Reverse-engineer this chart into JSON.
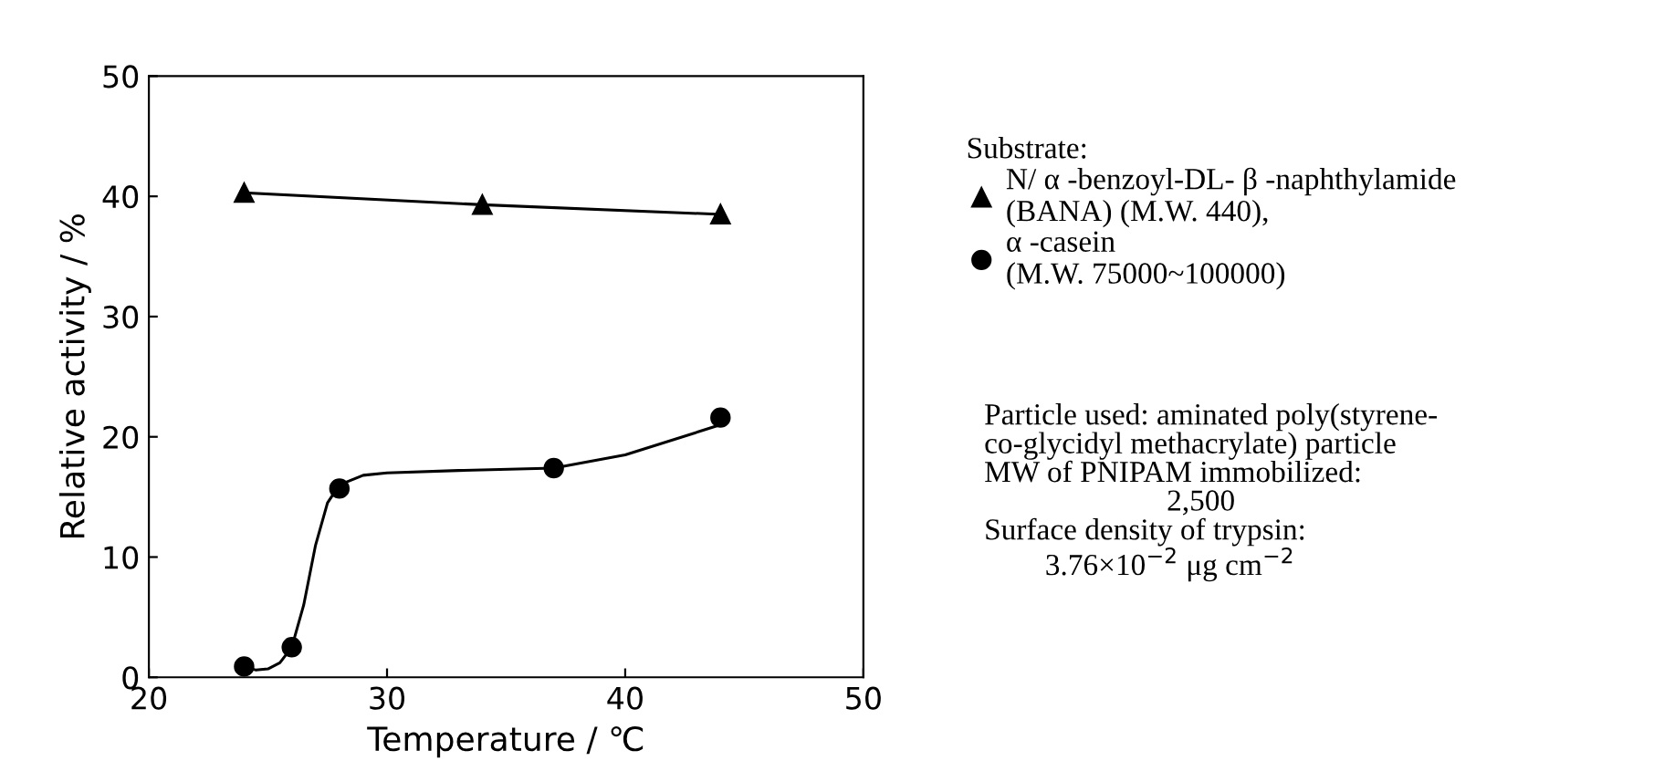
{
  "chart_data": {
    "type": "scatter",
    "xlabel": "Temperature / ℃",
    "ylabel": "Relative activity / %",
    "xlim": [
      20,
      50
    ],
    "ylim": [
      0,
      50
    ],
    "xticks": [
      20,
      30,
      40,
      50
    ],
    "yticks": [
      0,
      10,
      20,
      30,
      40,
      50
    ],
    "grid": false,
    "legend": "right",
    "legend_title": "Substrate:",
    "series": [
      {
        "name": "N/ α -benzoyl-DL- β -naphthylamide\n(BANA) (M.W. 440),",
        "type": "line",
        "marker": "triangle",
        "color": "#000000",
        "x": [
          24,
          34,
          44
        ],
        "values": [
          40.3,
          39.3,
          38.5
        ]
      },
      {
        "name": "α -casein\n(M.W. 75000~100000)",
        "marker": "circle",
        "color": "#000000",
        "x": [
          24,
          26,
          28,
          37,
          44
        ],
        "values": [
          0.9,
          2.5,
          15.7,
          17.4,
          21.6
        ]
      },
      {
        "type": "line",
        "marker": "none",
        "color": "#000000",
        "x": [
          24,
          24.5,
          25,
          25.5,
          26,
          26.5,
          27,
          27.5,
          28,
          29,
          30,
          33,
          37,
          40,
          44
        ],
        "values": [
          0.9,
          0.6,
          0.7,
          1.2,
          2.5,
          6,
          11,
          14.5,
          16,
          16.8,
          17,
          17.2,
          17.4,
          18.5,
          21
        ]
      }
    ],
    "annotations": [
      "Particle used: aminated poly(styrene-\nco-glycidyl methacrylate) particle\nMW of PNIPAM immobilized:\n                        2,500\nSurface density of trypsin:\n        3.76×10$^{−2}$ μg cm$^{−2}$"
    ]
  }
}
